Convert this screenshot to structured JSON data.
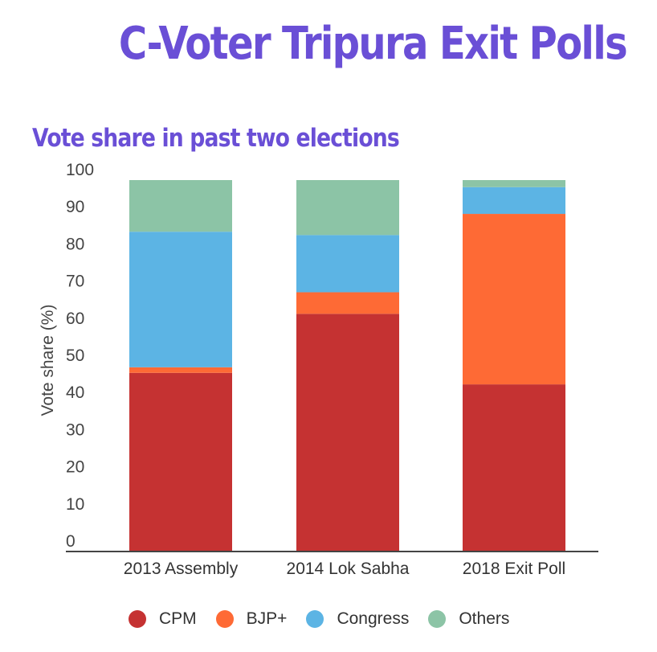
{
  "header": {
    "title": "C-Voter Tripura Exit Polls",
    "subtitle": "Vote share in past two elections"
  },
  "chart_data": {
    "type": "bar",
    "stacked": true,
    "title": "Vote share in past two elections",
    "xlabel": "",
    "ylabel": "Vote share (%)",
    "ylim": [
      0,
      100
    ],
    "yticks": [
      0,
      10,
      20,
      30,
      40,
      50,
      60,
      70,
      80,
      90,
      100
    ],
    "categories": [
      "2013 Assembly",
      "2014 Lok Sabha",
      "2018 Exit Poll"
    ],
    "series": [
      {
        "name": "CPM",
        "color": "#c53232",
        "values": [
          48.1,
          64.0,
          45.0
        ]
      },
      {
        "name": "BJP+",
        "color": "#fe6a35",
        "values": [
          1.5,
          5.8,
          45.9
        ]
      },
      {
        "name": "Congress",
        "color": "#5cb4e4",
        "values": [
          36.5,
          15.4,
          7.2
        ]
      },
      {
        "name": "Others",
        "color": "#8cc4a6",
        "values": [
          13.9,
          14.8,
          1.9
        ]
      }
    ],
    "legend_position": "bottom",
    "grid": false
  }
}
